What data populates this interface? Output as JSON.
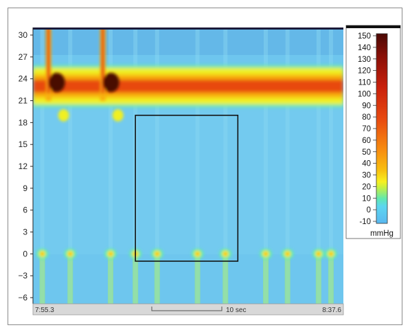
{
  "chart_data": {
    "type": "heatmap",
    "title": "",
    "xlabel": "",
    "ylabel": "",
    "y_ticks": [
      "30",
      "27",
      "24",
      "21",
      "18",
      "15",
      "12",
      "9",
      "6",
      "3",
      "0",
      "−3",
      "−6"
    ],
    "ylim": [
      -7,
      31
    ],
    "time_start": "7:55.3",
    "time_end": "8:37.6",
    "time_scale_label": "10 sec",
    "colorbar": {
      "ticks": [
        "150",
        "140",
        "130",
        "120",
        "110",
        "100",
        "90",
        "80",
        "70",
        "60",
        "50",
        "40",
        "30",
        "20",
        "10",
        "0",
        "-10"
      ],
      "min": -10,
      "max": 150,
      "unit": "mmHg"
    },
    "pressure_band": {
      "y_from": 20.5,
      "y_to": 25.5,
      "peak_mmHg": 60
    },
    "spikes": [
      {
        "time_fraction": 0.05,
        "peak_mmHg": 140
      },
      {
        "time_fraction": 0.225,
        "peak_mmHg": 150
      }
    ],
    "spots_at_zero": [
      0.03,
      0.12,
      0.25,
      0.33,
      0.4,
      0.53,
      0.62,
      0.75,
      0.82,
      0.92,
      0.96
    ],
    "highlight_box": {
      "time_from": 0.33,
      "time_to": 0.66,
      "y_from": -1,
      "y_to": 19
    }
  }
}
